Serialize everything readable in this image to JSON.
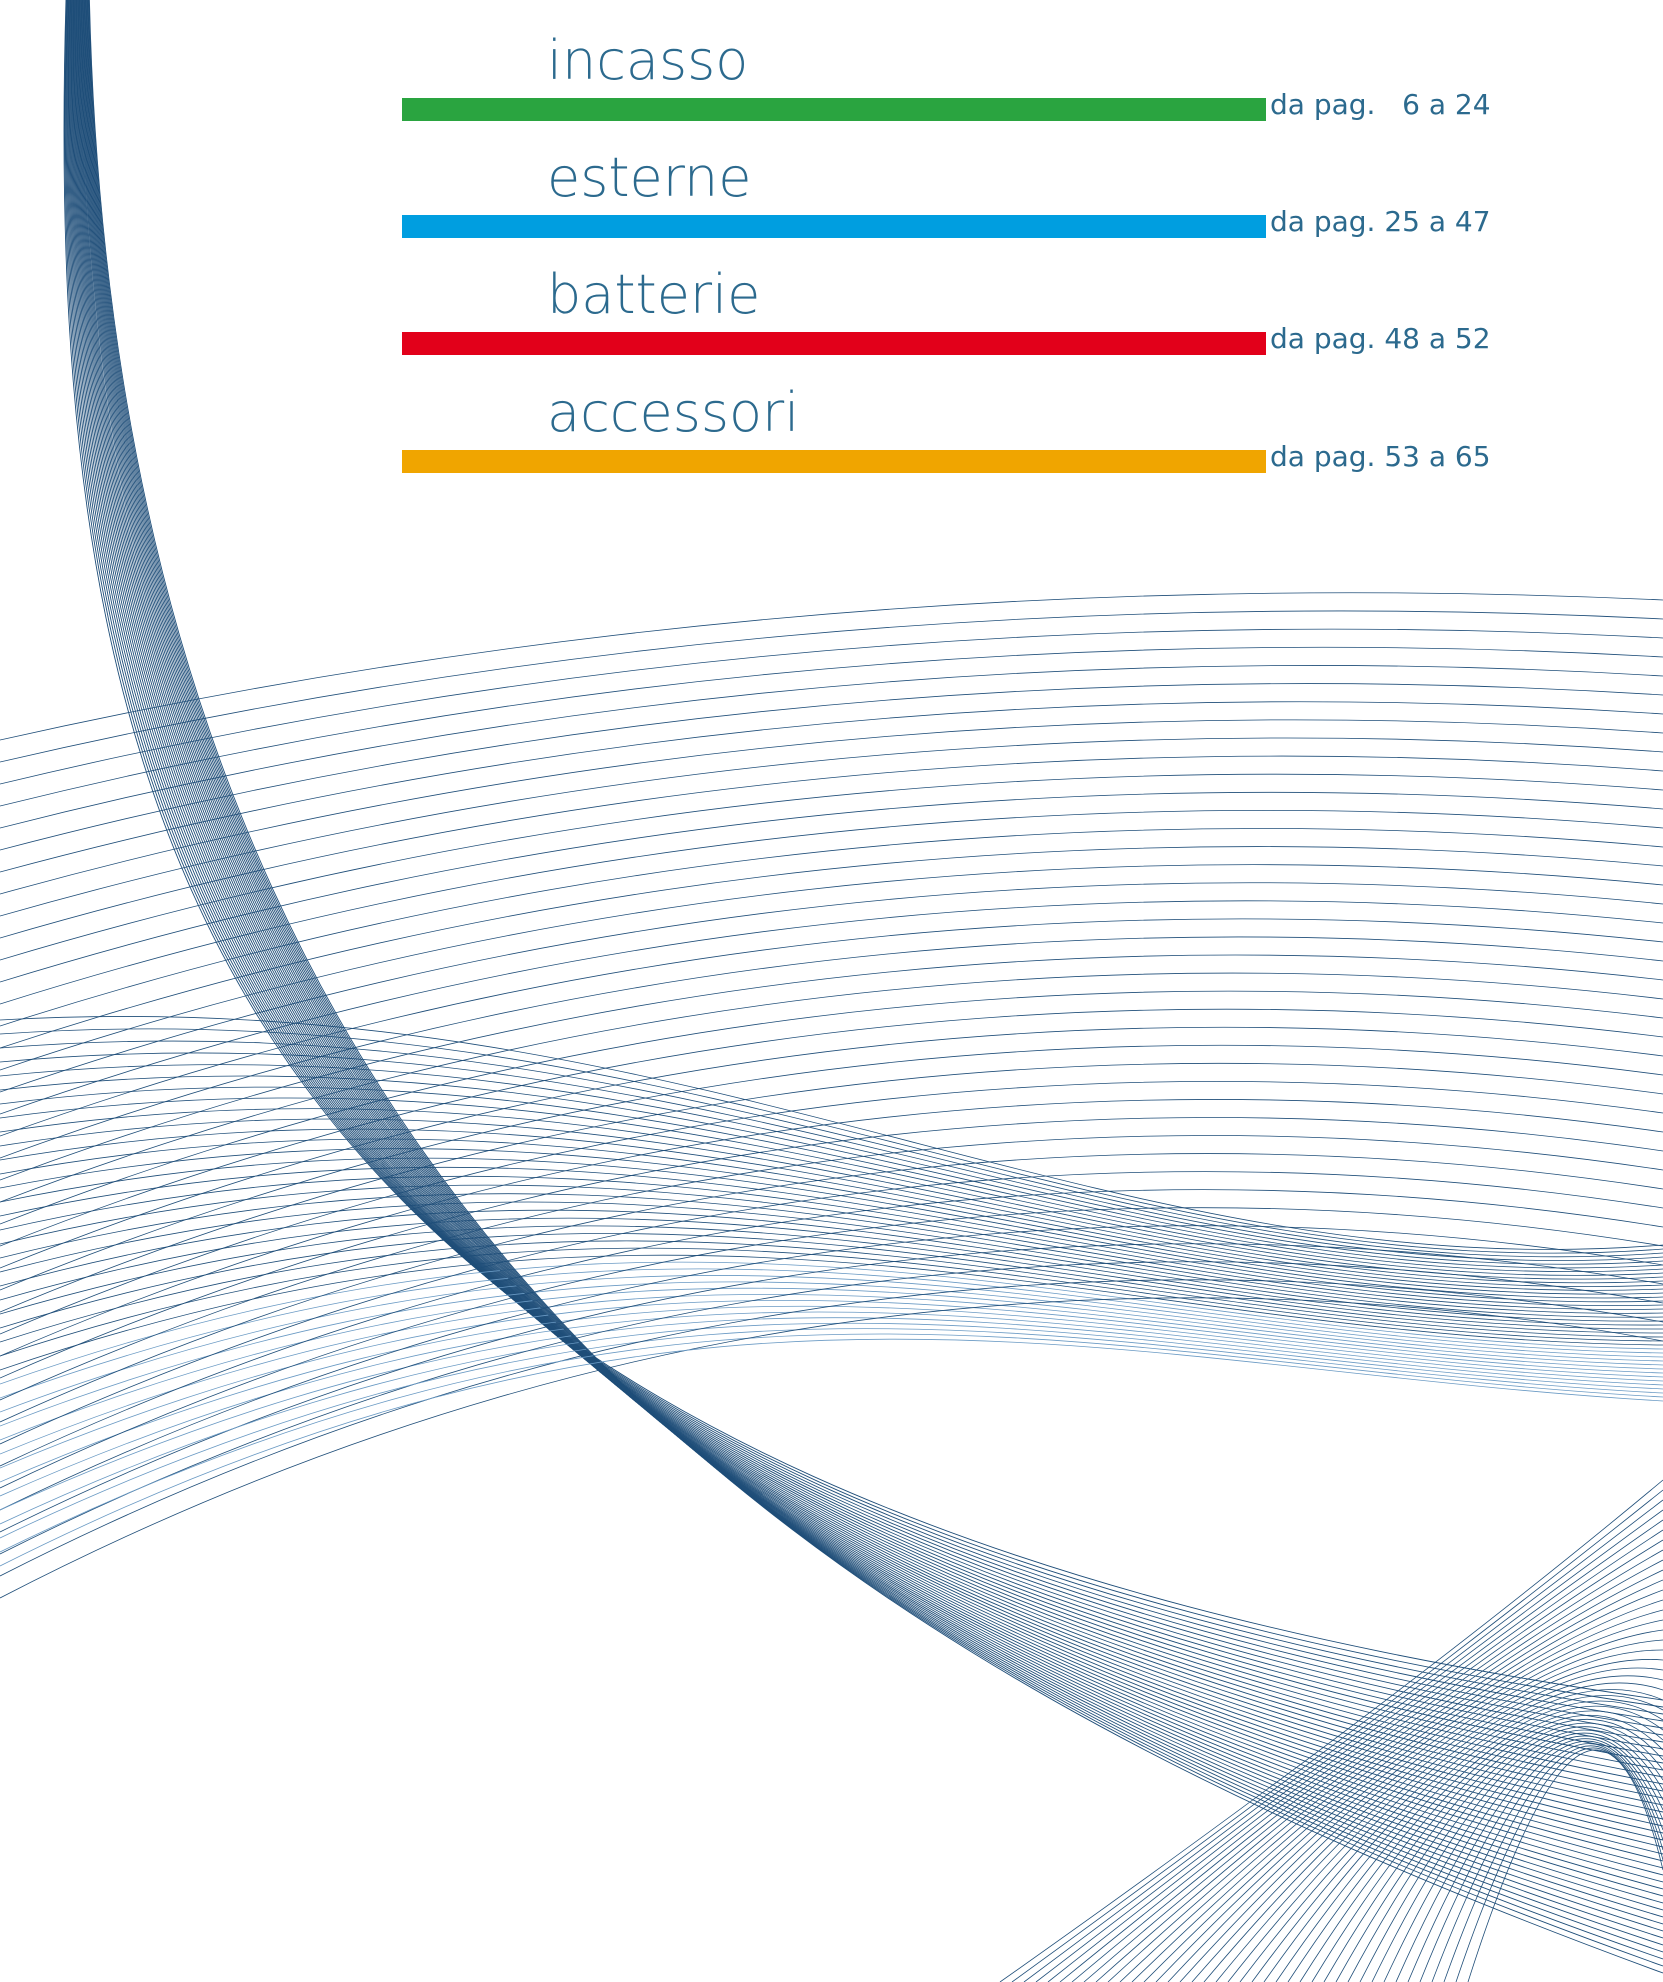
{
  "sections": [
    {
      "title": "incasso",
      "pages": "da pag.   6 a 24"
    },
    {
      "title": "esterne",
      "pages": "da pag. 25 a 47"
    },
    {
      "title": "batterie",
      "pages": "da pag. 48 a 52"
    },
    {
      "title": "accessori",
      "pages": "da pag. 53 a 65"
    }
  ]
}
